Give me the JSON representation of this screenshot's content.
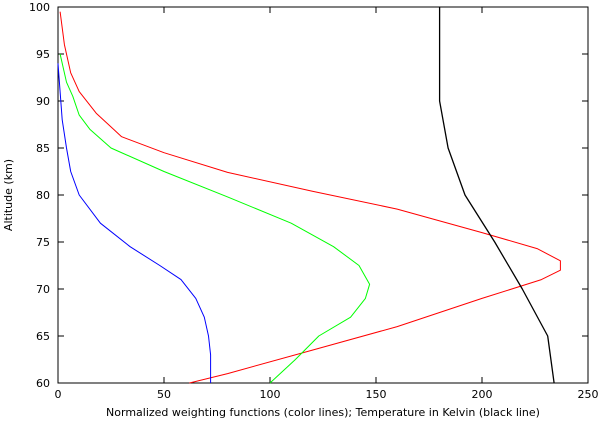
{
  "chart_data": {
    "type": "line",
    "title": "",
    "xlabel": "Normalized weighting functions (color lines); Temperature in Kelvin (black line)",
    "ylabel": "Altitude (km)",
    "xlim": [
      0,
      250
    ],
    "ylim": [
      60,
      100
    ],
    "xticks": [
      0,
      50,
      100,
      150,
      200,
      250
    ],
    "yticks": [
      60,
      65,
      70,
      75,
      80,
      85,
      90,
      95,
      100
    ],
    "grid": false,
    "legend": "none",
    "series": [
      {
        "color": "#ff0000",
        "points": [
          [
            62,
            60
          ],
          [
            80,
            61
          ],
          [
            120,
            63.5
          ],
          [
            160,
            66
          ],
          [
            200,
            69
          ],
          [
            228,
            71
          ],
          [
            237,
            72
          ],
          [
            237,
            73
          ],
          [
            226,
            74.3
          ],
          [
            200,
            76
          ],
          [
            160,
            78.5
          ],
          [
            120,
            80.4
          ],
          [
            80,
            82.4
          ],
          [
            50,
            84.5
          ],
          [
            30,
            86.2
          ],
          [
            18,
            88.7
          ],
          [
            10,
            91
          ],
          [
            6,
            93
          ],
          [
            3,
            96
          ],
          [
            1,
            99.5
          ]
        ]
      },
      {
        "color": "#00ff00",
        "points": [
          [
            100,
            60
          ],
          [
            112,
            62.5
          ],
          [
            123,
            65
          ],
          [
            138,
            67
          ],
          [
            145,
            69
          ],
          [
            147,
            70.5
          ],
          [
            142,
            72.5
          ],
          [
            130,
            74.5
          ],
          [
            110,
            77
          ],
          [
            80,
            79.8
          ],
          [
            50,
            82.5
          ],
          [
            25,
            85
          ],
          [
            15,
            87
          ],
          [
            10,
            88.5
          ],
          [
            7,
            90.5
          ],
          [
            4,
            92
          ],
          [
            1,
            95
          ]
        ]
      },
      {
        "color": "#0000ff",
        "points": [
          [
            72,
            60
          ],
          [
            72,
            63
          ],
          [
            71,
            65
          ],
          [
            69,
            67
          ],
          [
            65,
            69
          ],
          [
            58,
            71
          ],
          [
            48,
            72.5
          ],
          [
            34,
            74.5
          ],
          [
            20,
            77
          ],
          [
            10,
            80
          ],
          [
            6,
            82.5
          ],
          [
            4,
            85
          ],
          [
            2,
            88
          ],
          [
            1,
            91
          ],
          [
            0,
            94
          ]
        ]
      },
      {
        "color": "#000000",
        "points": [
          [
            234,
            60
          ],
          [
            231,
            65
          ],
          [
            219,
            70
          ],
          [
            206,
            75
          ],
          [
            192,
            80
          ],
          [
            184,
            85
          ],
          [
            180,
            90
          ],
          [
            180,
            100
          ]
        ]
      }
    ]
  }
}
